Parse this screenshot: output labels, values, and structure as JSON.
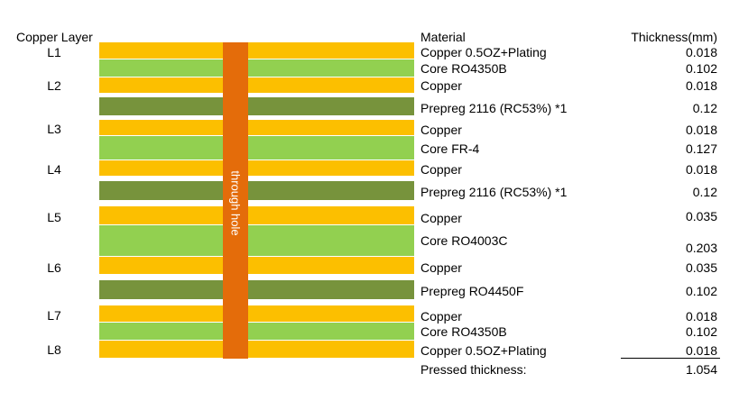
{
  "headers": {
    "copper_layer": "Copper Layer",
    "material": "Material",
    "thickness": "Thickness(mm)"
  },
  "colors": {
    "copper": "#fcbf00",
    "core": "#92d050",
    "prepreg": "#77933c",
    "via": "#e46c0a",
    "via_text": "#ffffff"
  },
  "via_label": "through hole",
  "layers": [
    {
      "label": "L1",
      "type": "copper",
      "material": "Copper 0.5OZ+Plating",
      "thickness": "0.018"
    },
    {
      "label": "",
      "type": "core",
      "material": "Core RO4350B",
      "thickness": "0.102"
    },
    {
      "label": "L2",
      "type": "copper",
      "material": "Copper",
      "thickness": "0.018"
    },
    {
      "label": "",
      "type": "prepreg",
      "material": "Prepreg 2116 (RC53%) *1",
      "thickness": "0.12"
    },
    {
      "label": "L3",
      "type": "copper",
      "material": "Copper",
      "thickness": "0.018"
    },
    {
      "label": "",
      "type": "core",
      "material": "Core FR-4",
      "thickness": "0.127"
    },
    {
      "label": "L4",
      "type": "copper",
      "material": "Copper",
      "thickness": "0.018"
    },
    {
      "label": "",
      "type": "prepreg",
      "material": "Prepreg 2116 (RC53%) *1",
      "thickness": "0.12"
    },
    {
      "label": "L5",
      "type": "copper",
      "material": "Copper",
      "thickness": "0.035"
    },
    {
      "label": "",
      "type": "core",
      "material": "Core RO4003C",
      "thickness": "0.203"
    },
    {
      "label": "L6",
      "type": "copper",
      "material": "Copper",
      "thickness": "0.035"
    },
    {
      "label": "",
      "type": "prepreg",
      "material": "Prepreg RO4450F",
      "thickness": "0.102"
    },
    {
      "label": "L7",
      "type": "copper",
      "material": "Copper",
      "thickness": "0.018"
    },
    {
      "label": "",
      "type": "core",
      "material": "Core RO4350B",
      "thickness": "0.102"
    },
    {
      "label": "L8",
      "type": "copper",
      "material": "Copper 0.5OZ+Plating",
      "thickness": "0.018"
    }
  ],
  "total": {
    "label": "Pressed thickness:",
    "value": "1.054"
  }
}
